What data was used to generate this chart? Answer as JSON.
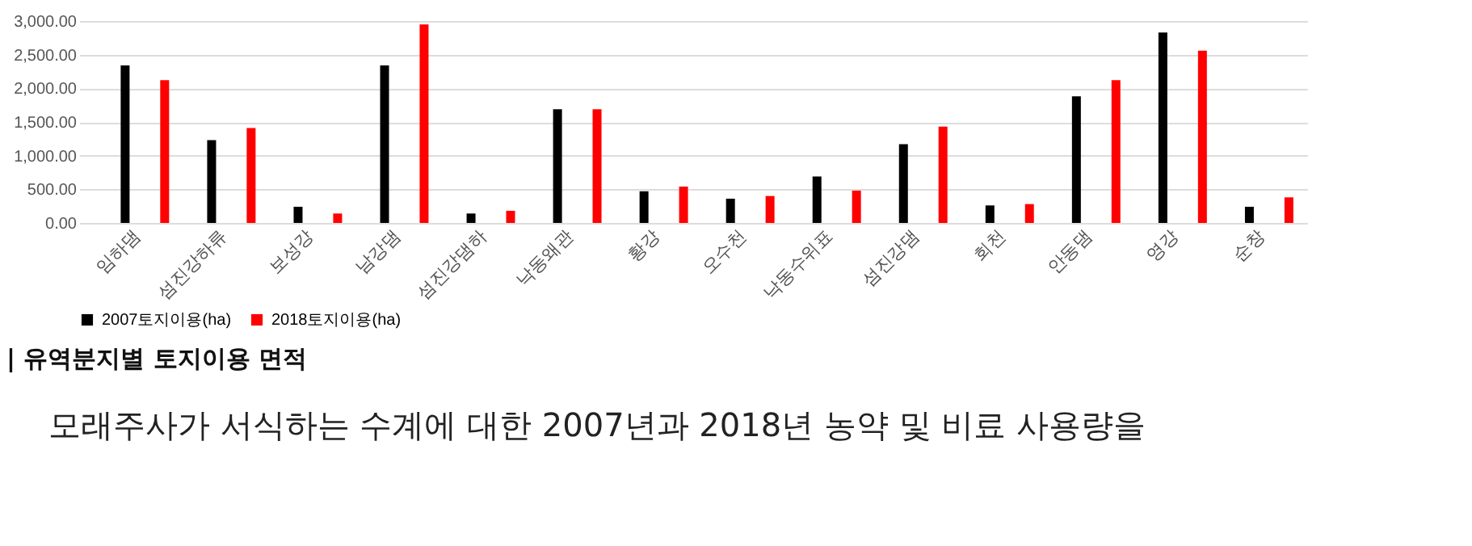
{
  "chart_data": {
    "type": "bar",
    "title": "| 유역분지별 토지이용 면적",
    "annotations": [
      "모래주사가 서식하는 수계에 대한 2007년과 2018년 농약 및 비료 사용량을"
    ],
    "categories": [
      "임하댐",
      "섬진강하류",
      "보성강",
      "남강댐",
      "섬진강댐하",
      "낙동왜관",
      "황강",
      "오수천",
      "낙동수위표",
      "섬진강댐",
      "회천",
      "안동댐",
      "영강",
      "순창"
    ],
    "series": [
      {
        "name": "2007토지이용(ha)",
        "color": "#000000",
        "values": [
          2340,
          1230,
          240,
          2340,
          140,
          1690,
          470,
          360,
          690,
          1170,
          260,
          1880,
          2830,
          240
        ]
      },
      {
        "name": "2018토지이용(ha)",
        "color": "#ff0000",
        "values": [
          2120,
          1410,
          140,
          2950,
          180,
          1690,
          540,
          400,
          480,
          1430,
          280,
          2120,
          2560,
          380
        ]
      }
    ],
    "ylim": [
      0,
      3000
    ],
    "yticks": [
      {
        "value": 0,
        "label": "0.00"
      },
      {
        "value": 500,
        "label": "500.00"
      },
      {
        "value": 1000,
        "label": "1,000.00"
      },
      {
        "value": 1500,
        "label": "1,500.00"
      },
      {
        "value": 2000,
        "label": "2,000.00"
      },
      {
        "value": 2500,
        "label": "2,500.00"
      },
      {
        "value": 3000,
        "label": "3,000.00"
      }
    ],
    "grid": "y",
    "legend": "bottom"
  }
}
